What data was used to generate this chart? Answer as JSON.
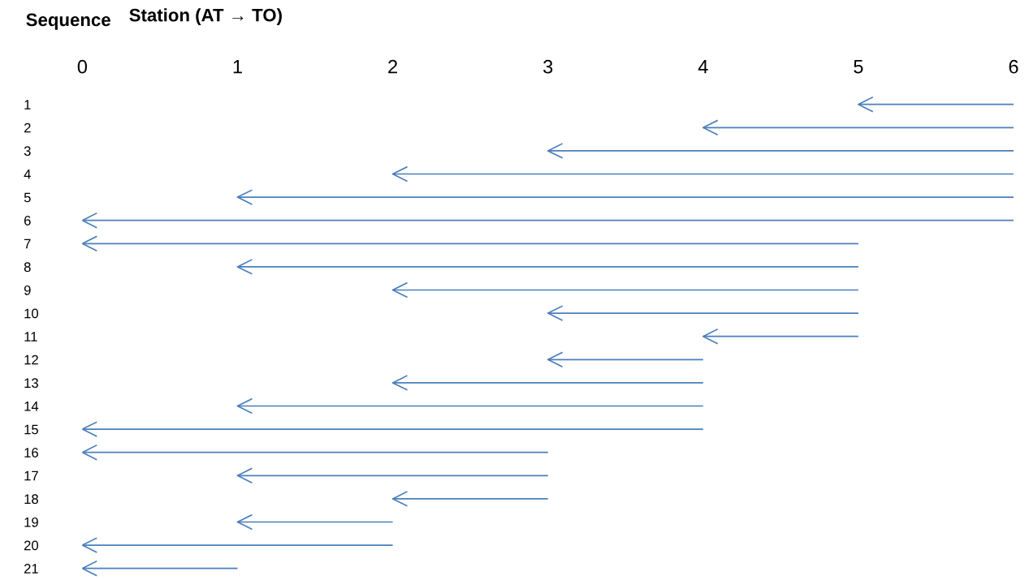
{
  "chart_data": {
    "type": "bar",
    "orientation": "horizontal",
    "xlabel": "Station (AT → TO)",
    "ylabel": "Sequence",
    "categories": [
      "1",
      "2",
      "3",
      "4",
      "5",
      "6",
      "7",
      "8",
      "9",
      "10",
      "11",
      "12",
      "13",
      "14",
      "15",
      "16",
      "17",
      "18",
      "19",
      "20",
      "21"
    ],
    "base": [
      5,
      4,
      3,
      2,
      1,
      0,
      0,
      1,
      2,
      3,
      4,
      3,
      2,
      1,
      0,
      0,
      1,
      2,
      1,
      0,
      0
    ],
    "values": [
      1,
      2,
      3,
      4,
      5,
      6,
      5,
      4,
      3,
      2,
      1,
      1,
      2,
      3,
      4,
      3,
      2,
      1,
      1,
      2,
      1
    ],
    "color": "#4a7ebb",
    "xlim": [
      0,
      6
    ],
    "xticks": [
      0,
      1,
      2,
      3,
      4,
      5,
      6
    ],
    "grid": false
  }
}
